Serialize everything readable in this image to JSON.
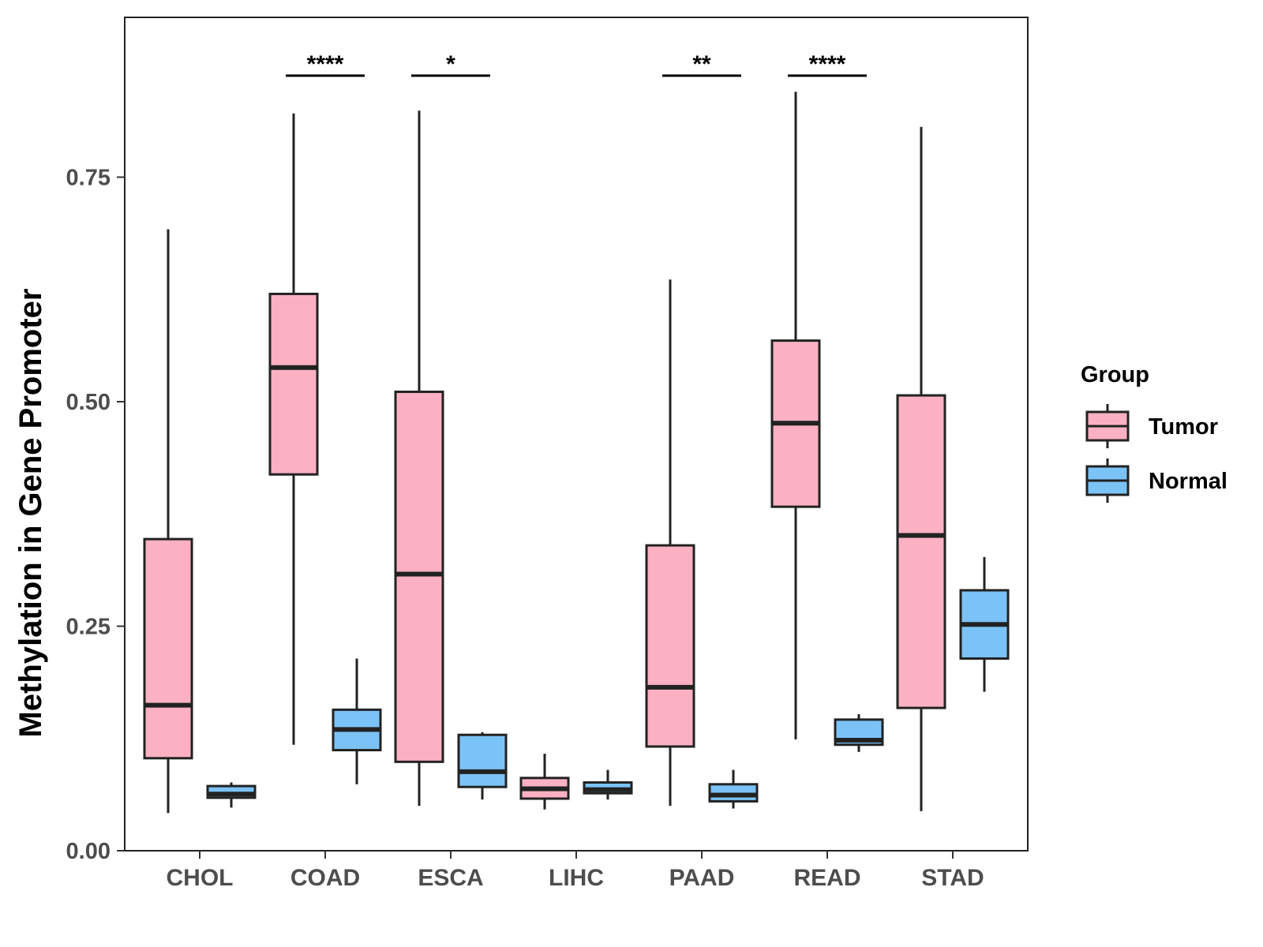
{
  "chart_data": {
    "type": "boxplot",
    "title": "",
    "xlabel": "",
    "ylabel": "Methylation in Gene Promoter",
    "ylim": [
      0,
      0.93
    ],
    "y_ticks": [
      "0.00",
      "0.25",
      "0.50",
      "0.75"
    ],
    "y_tick_values": [
      0,
      0.25,
      0.5,
      0.75
    ],
    "categories": [
      "CHOL",
      "COAD",
      "ESCA",
      "LIHC",
      "PAAD",
      "READ",
      "STAD"
    ],
    "series": [
      {
        "name": "Tumor",
        "color": "#FBB1C3",
        "boxes": [
          {
            "min": 0.042,
            "q1": 0.103,
            "median": 0.162,
            "q3": 0.347,
            "max": 0.692
          },
          {
            "min": 0.118,
            "q1": 0.419,
            "median": 0.538,
            "q3": 0.62,
            "max": 0.821
          },
          {
            "min": 0.05,
            "q1": 0.099,
            "median": 0.308,
            "q3": 0.511,
            "max": 0.824
          },
          {
            "min": 0.046,
            "q1": 0.058,
            "median": 0.069,
            "q3": 0.081,
            "max": 0.108
          },
          {
            "min": 0.05,
            "q1": 0.116,
            "median": 0.182,
            "q3": 0.34,
            "max": 0.636
          },
          {
            "min": 0.124,
            "q1": 0.383,
            "median": 0.476,
            "q3": 0.568,
            "max": 0.845
          },
          {
            "min": 0.044,
            "q1": 0.159,
            "median": 0.351,
            "q3": 0.507,
            "max": 0.806
          }
        ]
      },
      {
        "name": "Normal",
        "color": "#7BC3F7",
        "boxes": [
          {
            "min": 0.048,
            "q1": 0.059,
            "median": 0.063,
            "q3": 0.072,
            "max": 0.076
          },
          {
            "min": 0.074,
            "q1": 0.112,
            "median": 0.135,
            "q3": 0.157,
            "max": 0.214
          },
          {
            "min": 0.057,
            "q1": 0.071,
            "median": 0.088,
            "q3": 0.129,
            "max": 0.132
          },
          {
            "min": 0.057,
            "q1": 0.064,
            "median": 0.068,
            "q3": 0.076,
            "max": 0.09
          },
          {
            "min": 0.047,
            "q1": 0.055,
            "median": 0.062,
            "q3": 0.074,
            "max": 0.09
          },
          {
            "min": 0.11,
            "q1": 0.118,
            "median": 0.123,
            "q3": 0.146,
            "max": 0.152
          },
          {
            "min": 0.177,
            "q1": 0.214,
            "median": 0.252,
            "q3": 0.29,
            "max": 0.327
          }
        ]
      }
    ],
    "significance": [
      {
        "category": "COAD",
        "label": "****"
      },
      {
        "category": "ESCA",
        "label": "*"
      },
      {
        "category": "PAAD",
        "label": "**"
      },
      {
        "category": "READ",
        "label": "****"
      }
    ],
    "significance_bar_value": 0.863,
    "legend": {
      "title": "Group",
      "position": "right",
      "entries": [
        {
          "label": "Tumor",
          "color": "#FBB1C3"
        },
        {
          "label": "Normal",
          "color": "#7BC3F7"
        }
      ]
    },
    "grid": false
  }
}
